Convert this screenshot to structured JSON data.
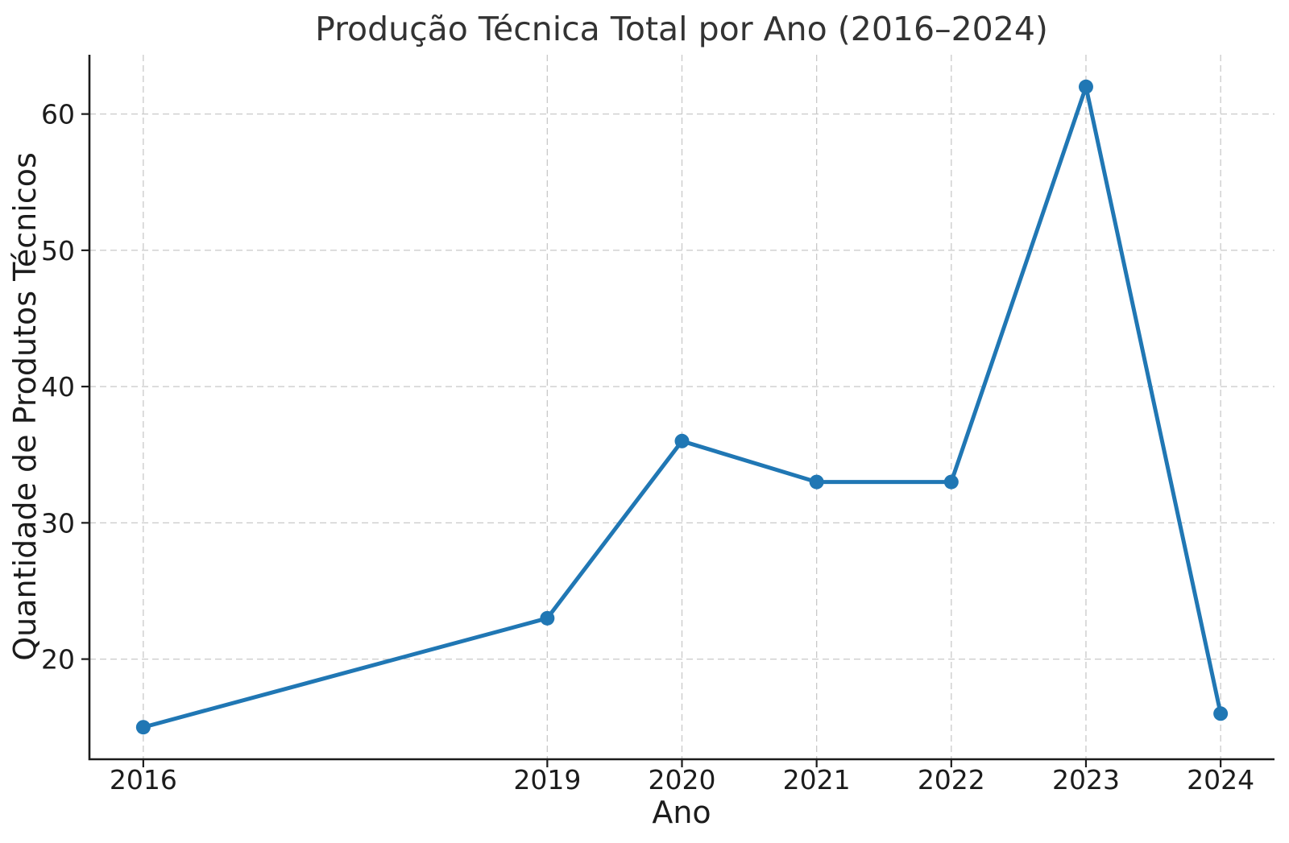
{
  "figure": {
    "background": "#ffffff"
  },
  "chart_data": {
    "type": "line",
    "title": "Produção Técnica Total por Ano (2016–2024)",
    "xlabel": "Ano",
    "ylabel": "Quantidade de Produtos Técnicos",
    "x": [
      2016,
      2019,
      2020,
      2021,
      2022,
      2023,
      2024
    ],
    "values": [
      15,
      23,
      36,
      33,
      33,
      62,
      16
    ],
    "series": [
      {
        "name": "Produção Técnica Total",
        "values": [
          15,
          23,
          36,
          33,
          33,
          62,
          16
        ]
      }
    ],
    "x_tick_labels": [
      "2016",
      "2019",
      "2020",
      "2021",
      "2022",
      "2023",
      "2024"
    ],
    "y_ticks": [
      20,
      30,
      40,
      50,
      60
    ],
    "xlim": [
      2015.6,
      2024.4
    ],
    "ylim": [
      12.65,
      64.35
    ],
    "grid": "dashed both axes",
    "legend": "none",
    "colors": {
      "line": "#2077b4",
      "marker": "#2077b4",
      "grid": "#c9c9c9",
      "axis": "#1c1c1c",
      "tick_text": "#1c1c1c",
      "title_text": "#333333"
    }
  }
}
